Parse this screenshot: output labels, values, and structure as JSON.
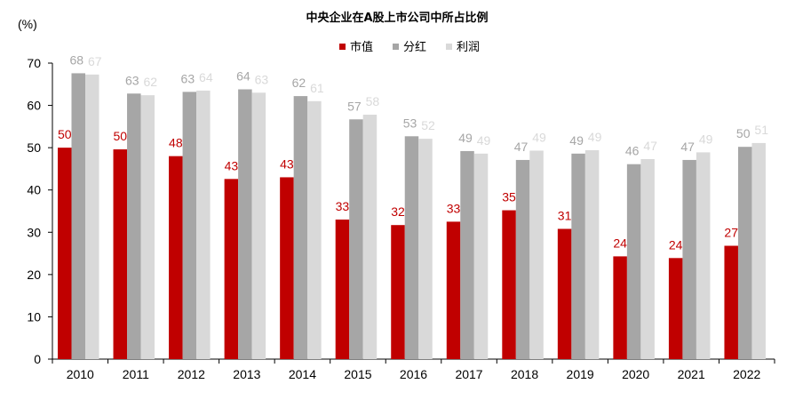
{
  "chart_data": {
    "type": "bar",
    "title": "中央企业在A股上市公司中所占比例",
    "ylabel": "(%)",
    "xlabel": "",
    "ylim": [
      0,
      70
    ],
    "yticks": [
      0,
      10,
      20,
      30,
      40,
      50,
      60,
      70
    ],
    "grid": false,
    "legend_position": "top-center",
    "categories": [
      "2010",
      "2011",
      "2012",
      "2013",
      "2014",
      "2015",
      "2016",
      "2017",
      "2018",
      "2019",
      "2020",
      "2021",
      "2022"
    ],
    "series": [
      {
        "name": "市值",
        "color": "#c00000",
        "values": [
          50,
          49.6,
          48,
          42.6,
          43,
          33,
          31.7,
          32.5,
          35.2,
          30.8,
          24.3,
          23.9,
          26.8
        ],
        "labels": [
          "50",
          "50",
          "48",
          "43",
          "43",
          "33",
          "32",
          "33",
          "35",
          "31",
          "24",
          "24",
          "27"
        ],
        "label_color": "#c00000"
      },
      {
        "name": "分红",
        "color": "#a6a6a6",
        "values": [
          67.6,
          62.8,
          63.2,
          63.8,
          62.2,
          56.7,
          52.7,
          49.2,
          47.1,
          48.6,
          46.1,
          47.1,
          50.2
        ],
        "labels": [
          "68",
          "63",
          "63",
          "64",
          "62",
          "57",
          "53",
          "49",
          "47",
          "49",
          "46",
          "47",
          "50"
        ],
        "label_color": "#a6a6a6"
      },
      {
        "name": "利润",
        "color": "#d9d9d9",
        "values": [
          67.3,
          62.4,
          63.5,
          63,
          61,
          57.8,
          52.1,
          48.6,
          49.3,
          49.4,
          47.3,
          48.9,
          51.1
        ],
        "labels": [
          "67",
          "62",
          "64",
          "63",
          "61",
          "58",
          "52",
          "49",
          "49",
          "49",
          "47",
          "49",
          "51"
        ],
        "label_color": "#d9d9d9"
      }
    ]
  }
}
